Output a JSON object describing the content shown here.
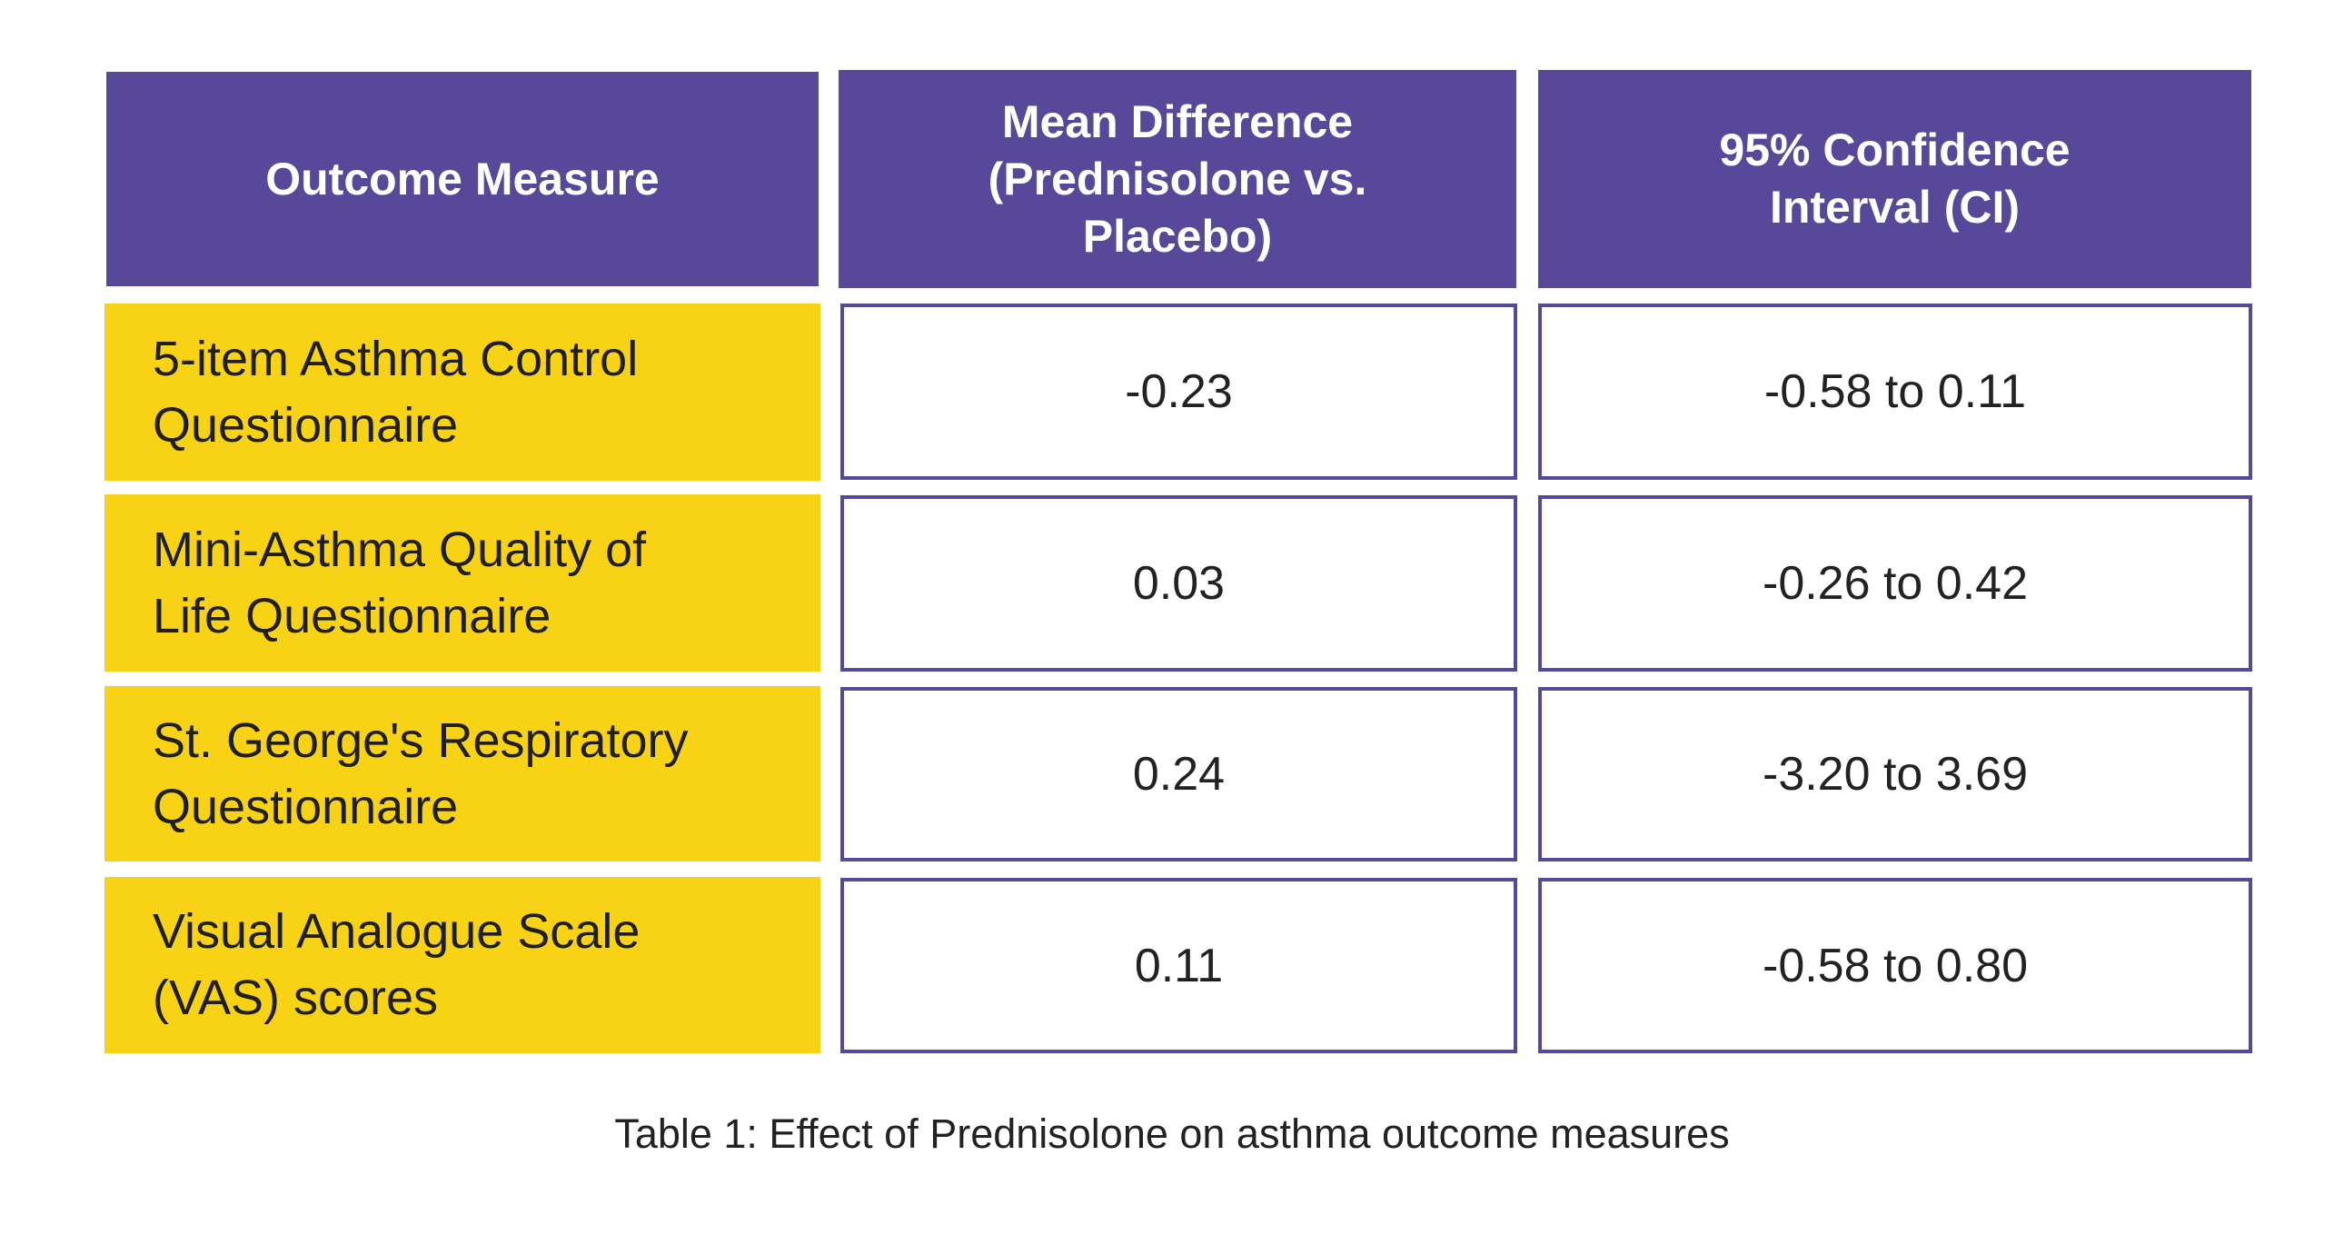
{
  "chart_data": {
    "type": "table",
    "columns": [
      "Outcome Measure",
      "Mean Difference (Prednisolone vs. Placebo)",
      "95% Confidence Interval (CI)"
    ],
    "rows": [
      {
        "measure": "5-item Asthma Control Questionnaire",
        "mean_difference": "-0.23",
        "ci": "-0.58 to 0.11"
      },
      {
        "measure": "Mini-Asthma Quality of Life Questionnaire",
        "mean_difference": "0.03",
        "ci": "-0.26 to 0.42"
      },
      {
        "measure": "St. George's Respiratory Questionnaire",
        "mean_difference": "0.24",
        "ci": "-3.20 to 3.69"
      },
      {
        "measure": "Visual Analogue Scale (VAS) scores",
        "mean_difference": "0.11",
        "ci": "-0.58 to 0.80"
      }
    ],
    "caption": "Table 1: Effect of Prednisolone on asthma outcome measures"
  },
  "colors": {
    "header_bg": "#57489a",
    "header_text": "#ffffff",
    "label_bg": "#f8d315",
    "cell_border": "#57489a"
  }
}
